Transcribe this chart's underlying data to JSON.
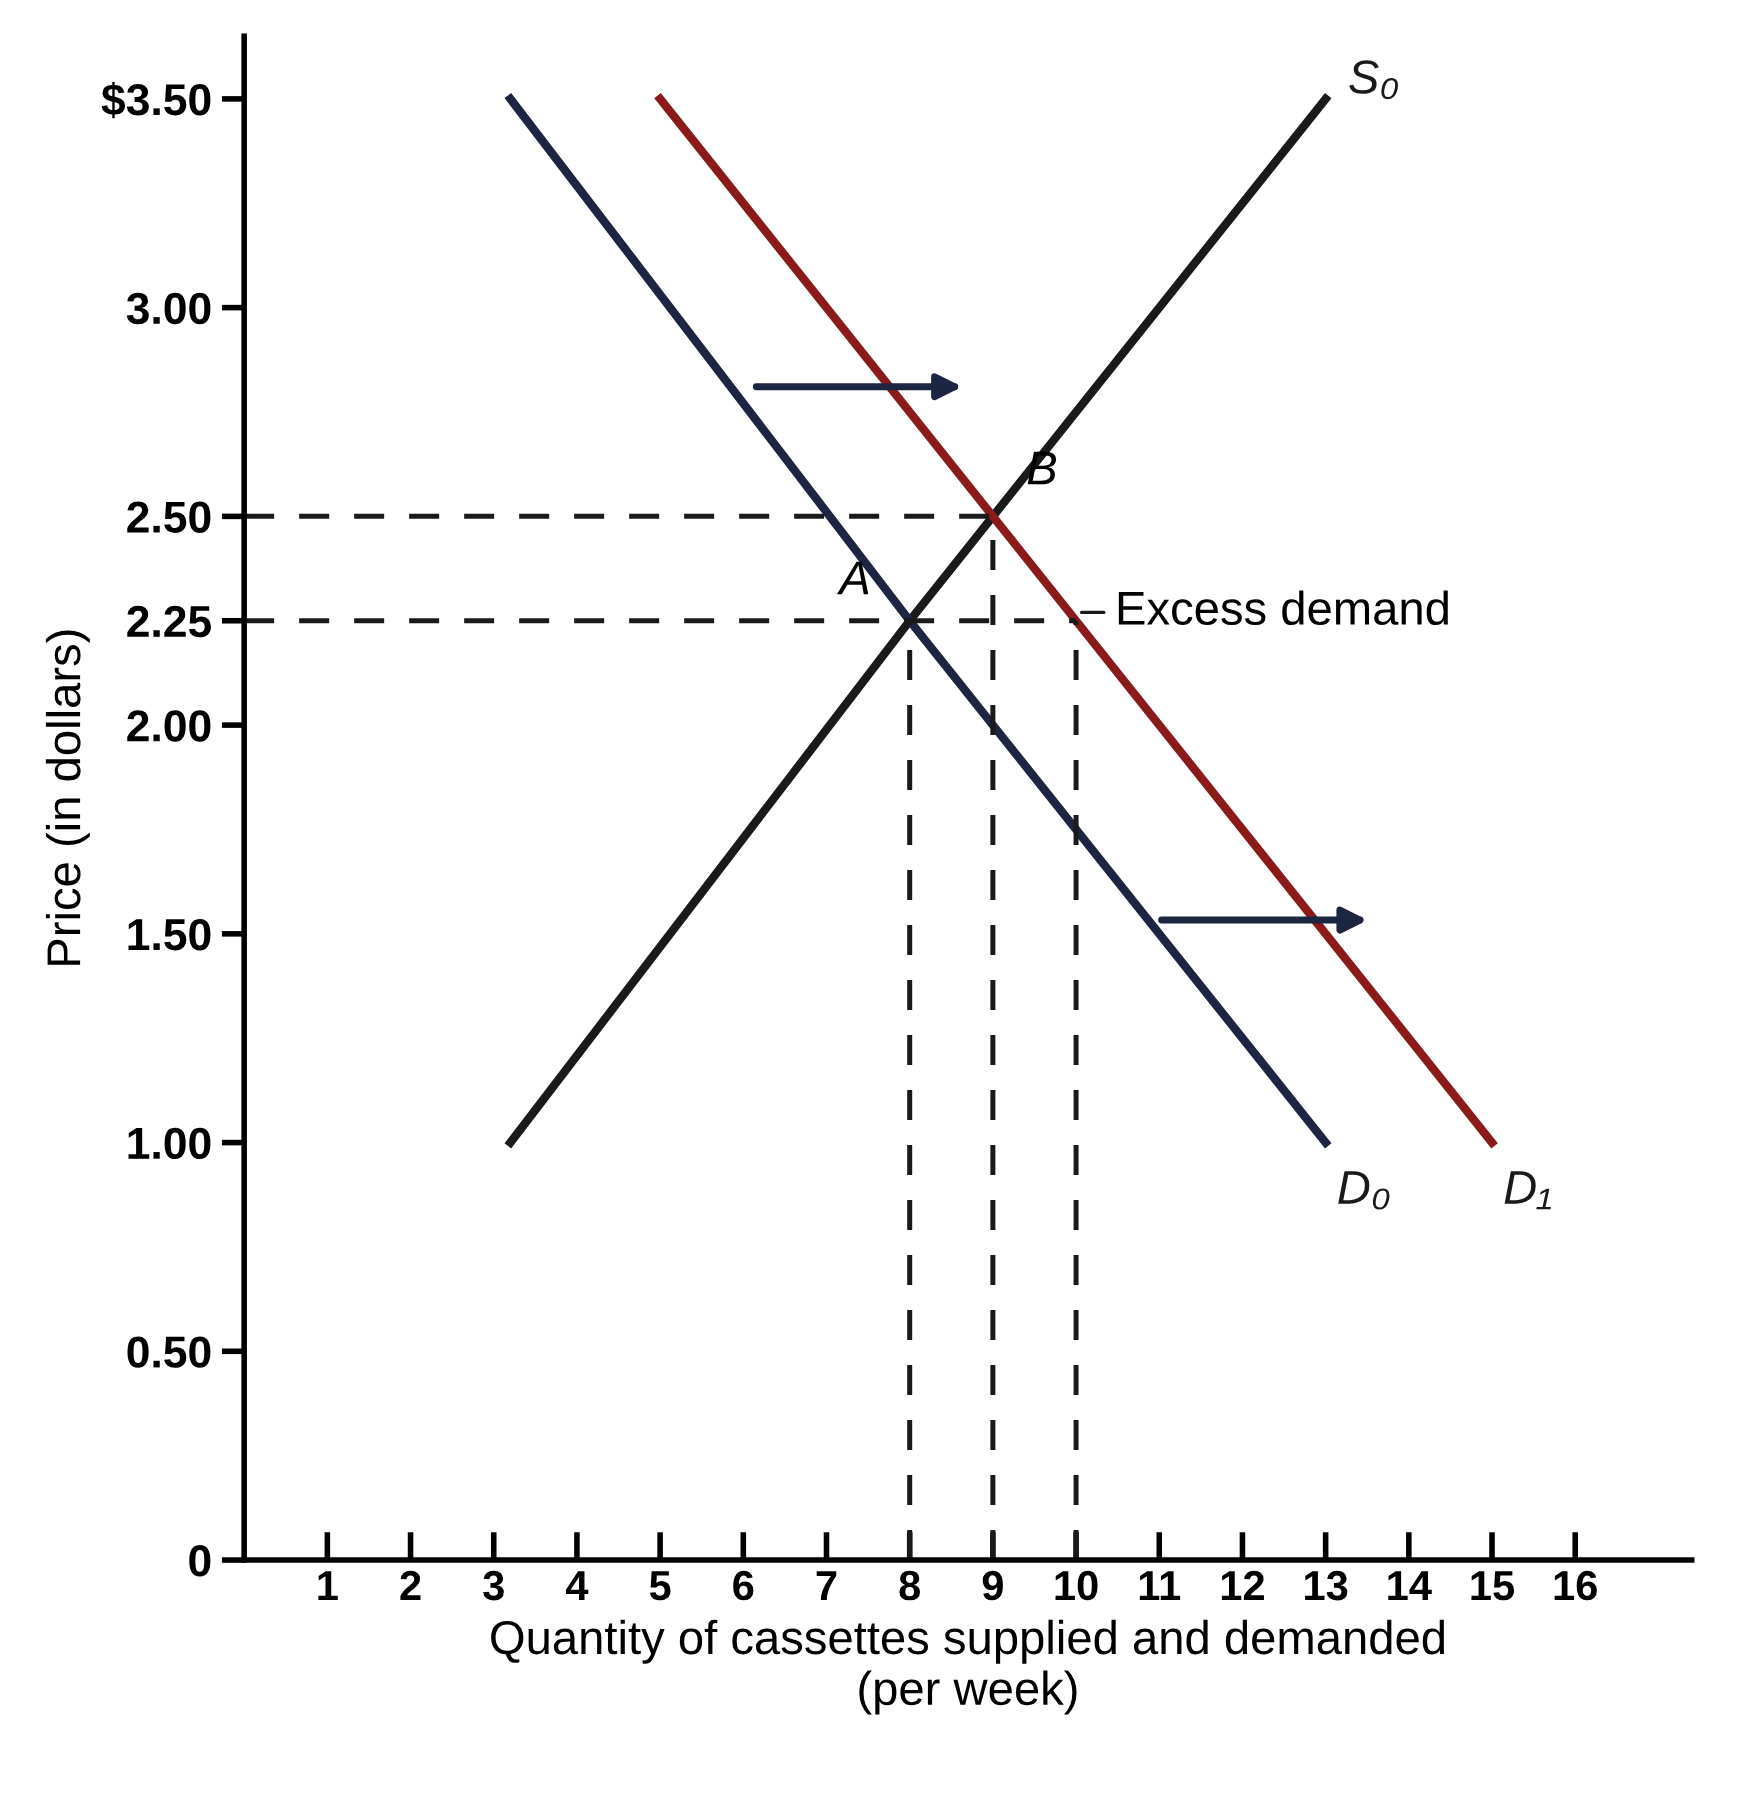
{
  "chart_data": {
    "type": "line",
    "xlabel": "Quantity of cassettes supplied and demanded\n(per week)",
    "ylabel": "Price (in dollars)",
    "xlim": [
      0,
      17.4
    ],
    "ylim": [
      0,
      3.65
    ],
    "xticks": [
      1,
      2,
      3,
      4,
      5,
      6,
      7,
      8,
      9,
      10,
      11,
      12,
      13,
      14,
      15,
      16
    ],
    "yticks": [
      0,
      {
        "value": 0.5,
        "label": "0.50"
      },
      {
        "value": 1.0,
        "label": "1.00"
      },
      {
        "value": 1.5,
        "label": "1.50"
      },
      {
        "value": 2.0,
        "label": "2.00"
      },
      2.25,
      {
        "value": 2.5,
        "label": "2.50"
      },
      {
        "value": 3.0,
        "label": "3.00"
      },
      {
        "value": 3.5,
        "label": "$3.50"
      }
    ],
    "grid": false,
    "legend": false,
    "marker": "none",
    "series": [
      {
        "name": "S₀",
        "color": "#1a1a1a",
        "x": [
          3.2,
          8,
          9,
          13
        ],
        "values": [
          1.0,
          2.25,
          2.5,
          3.5
        ]
      },
      {
        "name": "D₀",
        "color": "#1c2541",
        "x": [
          3.2,
          8,
          13
        ],
        "values": [
          3.5,
          2.25,
          1.0
        ]
      },
      {
        "name": "D₁",
        "color": "#8b1a1a",
        "x": [
          5,
          9,
          10,
          15
        ],
        "values": [
          3.5,
          2.5,
          2.25,
          1.0
        ]
      },
      {
        "color": "#1a1a1a",
        "line_style": "dashed",
        "x": [
          0,
          9
        ],
        "values": [
          2.5,
          2.5
        ]
      },
      {
        "color": "#1a1a1a",
        "line_style": "dashed",
        "x": [
          0,
          10
        ],
        "values": [
          2.25,
          2.25
        ]
      },
      {
        "color": "#1a1a1a",
        "line_style": "dashed",
        "x": [
          8,
          8
        ],
        "values": [
          0,
          2.25
        ]
      },
      {
        "color": "#1a1a1a",
        "line_style": "dashed",
        "x": [
          9,
          9
        ],
        "values": [
          0,
          2.5
        ]
      },
      {
        "color": "#1a1a1a",
        "line_style": "dashed",
        "x": [
          10,
          10
        ],
        "values": [
          0,
          2.25
        ]
      }
    ],
    "annotations": [
      {
        "text": "A",
        "x": 8,
        "y": 2.25
      },
      {
        "text": "B",
        "x": 9,
        "y": 2.5
      },
      {
        "text": "Excess demand",
        "x": 10,
        "y": 2.25
      }
    ]
  }
}
